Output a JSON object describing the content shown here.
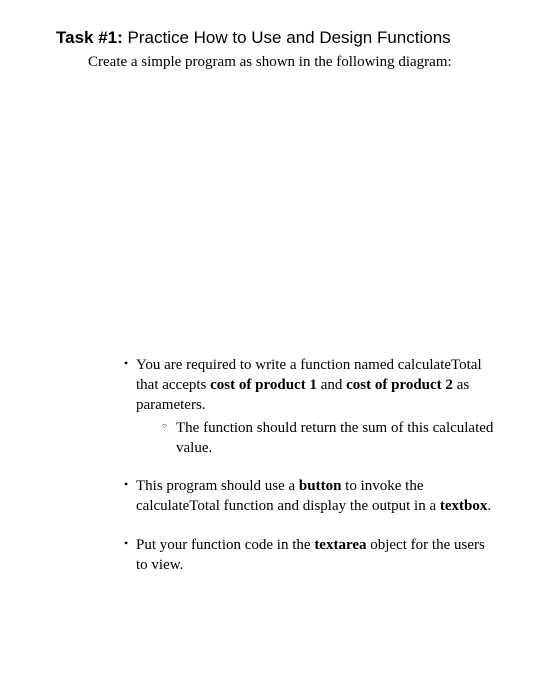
{
  "heading": {
    "label": "Task #1:",
    "title": "Practice How to Use and Design Functions"
  },
  "instruction": "Create a simple program as shown in the following diagram:",
  "bullets": [
    {
      "parts": [
        {
          "text": "You are required to write a function named calculateTotal that accepts ",
          "bold": false
        },
        {
          "text": "cost of product 1",
          "bold": true
        },
        {
          "text": " and ",
          "bold": false
        },
        {
          "text": "cost of product 2",
          "bold": true
        },
        {
          "text": " as parameters.",
          "bold": false
        }
      ],
      "sub": [
        {
          "text": "The function should return the sum of this calculated value."
        }
      ]
    },
    {
      "parts": [
        {
          "text": "This program should use a ",
          "bold": false
        },
        {
          "text": "button",
          "bold": true
        },
        {
          "text": " to invoke the calculateTotal function and display the output in a ",
          "bold": false
        },
        {
          "text": "textbox",
          "bold": true
        },
        {
          "text": ".",
          "bold": false
        }
      ]
    },
    {
      "parts": [
        {
          "text": "Put your function code in the ",
          "bold": false
        },
        {
          "text": "textarea",
          "bold": true
        },
        {
          "text": " object for the users to view.",
          "bold": false
        }
      ]
    }
  ],
  "style": {
    "font_body": "Georgia, 'Times New Roman', serif",
    "font_heading": "Arial, Helvetica, sans-serif",
    "heading_fontsize": 17,
    "body_fontsize": 15,
    "color_text": "#000000",
    "color_bg": "#ffffff"
  }
}
